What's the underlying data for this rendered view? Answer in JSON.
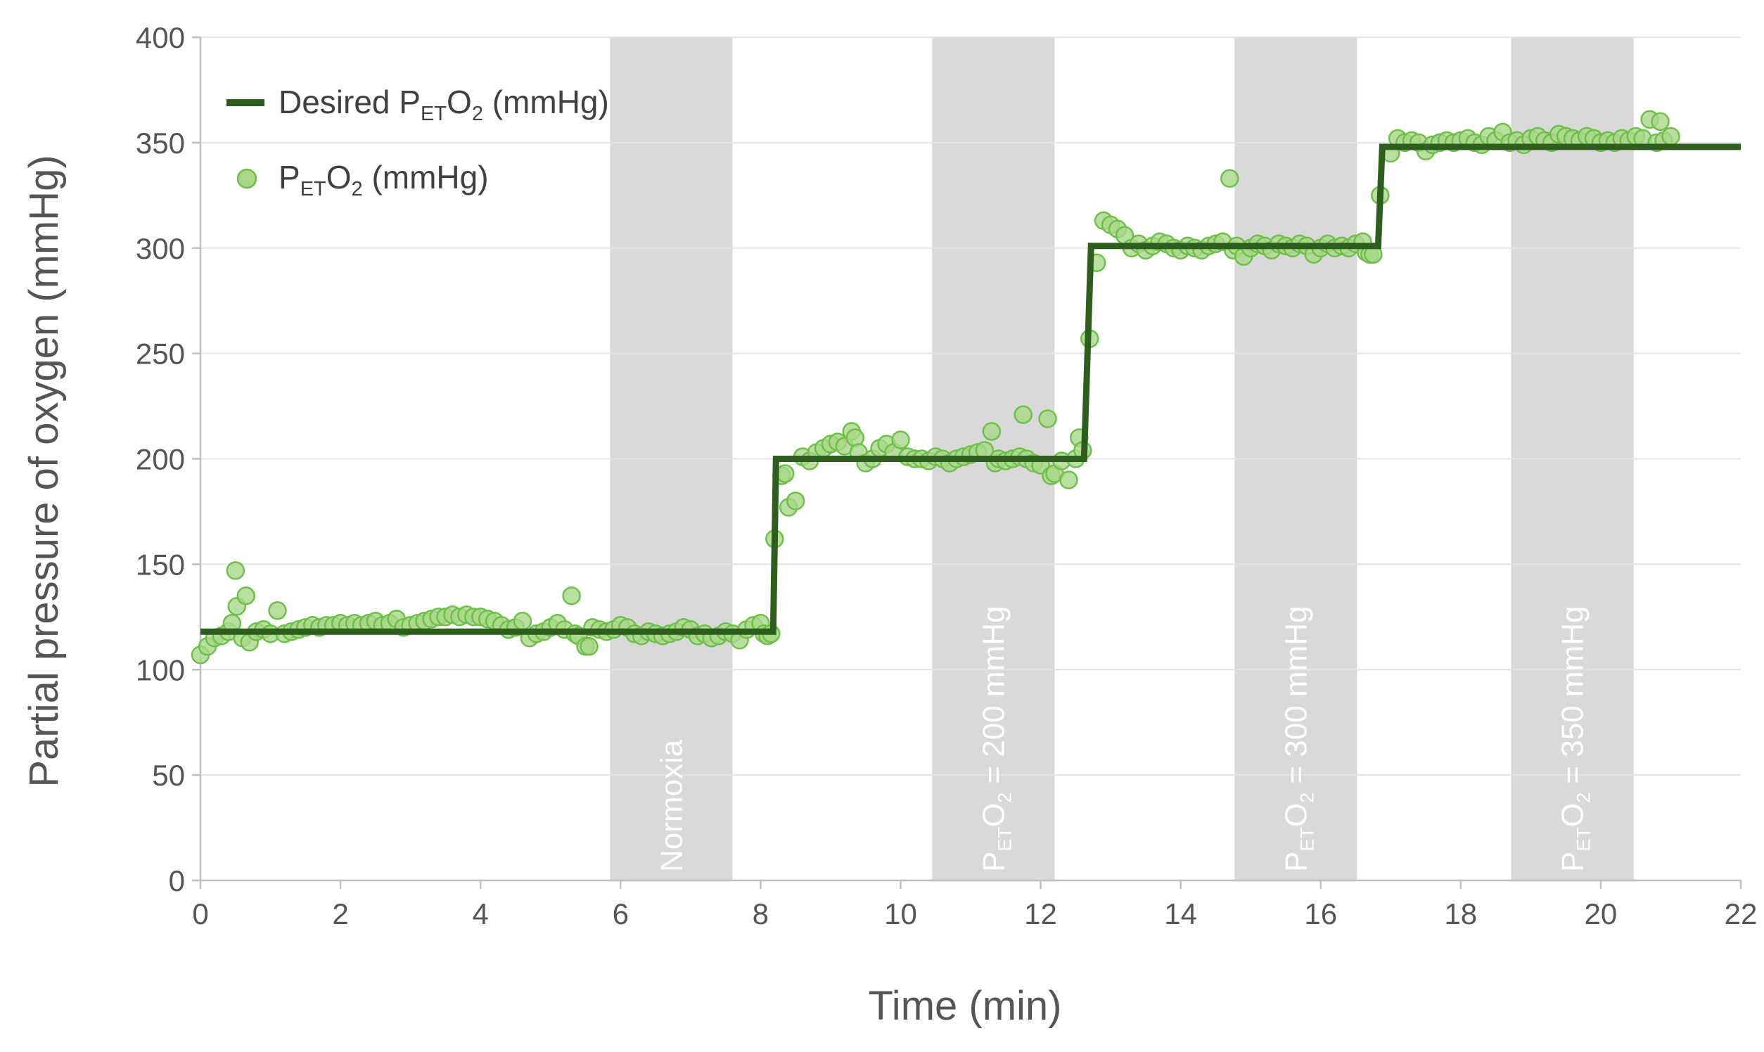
{
  "chart_data": {
    "type": "line",
    "title": "",
    "xlabel": "Time (min)",
    "ylabel": "Partial pressure of oxygen (mmHg)",
    "xlim": [
      0,
      22
    ],
    "ylim": [
      0,
      400
    ],
    "xticks": [
      0,
      2,
      4,
      6,
      8,
      10,
      12,
      14,
      16,
      18,
      20,
      22
    ],
    "yticks": [
      0,
      50,
      100,
      150,
      200,
      250,
      300,
      350,
      400
    ],
    "grid": "horizontal",
    "legend_position": "top-left",
    "colors": {
      "desired_line": "#2d5e1e",
      "marker_fill": "#a8d888",
      "marker_edge": "#6fbf4a",
      "band": "#d9d9d9",
      "band_text": "#ffffff",
      "text": "#555555"
    },
    "shaded_regions": [
      {
        "x_start": 5.85,
        "x_end": 7.6,
        "label": "Normoxia",
        "label_parts": []
      },
      {
        "x_start": 10.45,
        "x_end": 12.2,
        "label": "",
        "label_parts": [
          {
            "t": "P",
            "s": "n"
          },
          {
            "t": "ET",
            "s": "sub"
          },
          {
            "t": "O",
            "s": "n"
          },
          {
            "t": "2",
            "s": "sub"
          },
          {
            "t": " = 200 mmHg",
            "s": "n"
          }
        ]
      },
      {
        "x_start": 14.77,
        "x_end": 16.52,
        "label": "",
        "label_parts": [
          {
            "t": "P",
            "s": "n"
          },
          {
            "t": "ET",
            "s": "sub"
          },
          {
            "t": "O",
            "s": "n"
          },
          {
            "t": "2",
            "s": "sub"
          },
          {
            "t": " = 300 mmHg",
            "s": "n"
          }
        ]
      },
      {
        "x_start": 18.72,
        "x_end": 20.47,
        "label": "",
        "label_parts": [
          {
            "t": "P",
            "s": "n"
          },
          {
            "t": "ET",
            "s": "sub"
          },
          {
            "t": "O",
            "s": "n"
          },
          {
            "t": "2",
            "s": "sub"
          },
          {
            "t": " = 350 mmHg",
            "s": "n"
          }
        ]
      }
    ],
    "series": [
      {
        "name": "Desired PETO2 (mmHg)",
        "name_parts": [
          {
            "t": "Desired P",
            "s": "n"
          },
          {
            "t": "ET",
            "s": "sub"
          },
          {
            "t": "O",
            "s": "n"
          },
          {
            "t": "2",
            "s": "sub"
          },
          {
            "t": " (mmHg)",
            "s": "n"
          }
        ],
        "type": "step-line",
        "points": [
          [
            0,
            118
          ],
          [
            8.18,
            118
          ],
          [
            8.22,
            200
          ],
          [
            12.62,
            200
          ],
          [
            12.72,
            301
          ],
          [
            16.82,
            301
          ],
          [
            16.88,
            348
          ],
          [
            22,
            348
          ]
        ]
      },
      {
        "name": "PETO2 (mmHg)",
        "name_parts": [
          {
            "t": "P",
            "s": "n"
          },
          {
            "t": "ET",
            "s": "sub"
          },
          {
            "t": "O",
            "s": "n"
          },
          {
            "t": "2",
            "s": "sub"
          },
          {
            "t": " (mmHg)",
            "s": "n"
          }
        ],
        "type": "scatter",
        "points": [
          [
            0.0,
            107
          ],
          [
            0.1,
            111
          ],
          [
            0.2,
            115
          ],
          [
            0.3,
            116
          ],
          [
            0.4,
            118
          ],
          [
            0.45,
            122
          ],
          [
            0.5,
            147
          ],
          [
            0.52,
            130
          ],
          [
            0.6,
            115
          ],
          [
            0.65,
            135
          ],
          [
            0.7,
            113
          ],
          [
            0.8,
            118
          ],
          [
            0.9,
            119
          ],
          [
            1.0,
            117
          ],
          [
            1.1,
            128
          ],
          [
            1.2,
            117
          ],
          [
            1.3,
            118
          ],
          [
            1.4,
            119
          ],
          [
            1.5,
            120
          ],
          [
            1.6,
            121
          ],
          [
            1.7,
            120
          ],
          [
            1.8,
            121
          ],
          [
            1.9,
            121
          ],
          [
            2.0,
            122
          ],
          [
            2.1,
            121
          ],
          [
            2.2,
            122
          ],
          [
            2.3,
            121
          ],
          [
            2.4,
            122
          ],
          [
            2.5,
            123
          ],
          [
            2.6,
            121
          ],
          [
            2.7,
            122
          ],
          [
            2.8,
            124
          ],
          [
            2.9,
            120
          ],
          [
            3.0,
            121
          ],
          [
            3.1,
            122
          ],
          [
            3.2,
            123
          ],
          [
            3.3,
            124
          ],
          [
            3.4,
            125
          ],
          [
            3.5,
            125
          ],
          [
            3.6,
            126
          ],
          [
            3.7,
            125
          ],
          [
            3.8,
            126
          ],
          [
            3.9,
            125
          ],
          [
            4.0,
            125
          ],
          [
            4.1,
            124
          ],
          [
            4.2,
            123
          ],
          [
            4.3,
            121
          ],
          [
            4.4,
            119
          ],
          [
            4.5,
            120
          ],
          [
            4.6,
            123
          ],
          [
            4.7,
            115
          ],
          [
            4.8,
            117
          ],
          [
            4.9,
            118
          ],
          [
            5.0,
            120
          ],
          [
            5.1,
            122
          ],
          [
            5.2,
            119
          ],
          [
            5.3,
            135
          ],
          [
            5.35,
            117
          ],
          [
            5.4,
            116
          ],
          [
            5.5,
            111
          ],
          [
            5.55,
            111
          ],
          [
            5.6,
            120
          ],
          [
            5.7,
            119
          ],
          [
            5.8,
            118
          ],
          [
            5.9,
            119
          ],
          [
            6.0,
            121
          ],
          [
            6.1,
            120
          ],
          [
            6.2,
            117
          ],
          [
            6.3,
            116
          ],
          [
            6.4,
            118
          ],
          [
            6.5,
            117
          ],
          [
            6.6,
            116
          ],
          [
            6.7,
            117
          ],
          [
            6.8,
            118
          ],
          [
            6.9,
            120
          ],
          [
            7.0,
            119
          ],
          [
            7.1,
            116
          ],
          [
            7.2,
            117
          ],
          [
            7.3,
            115
          ],
          [
            7.4,
            116
          ],
          [
            7.5,
            118
          ],
          [
            7.6,
            117
          ],
          [
            7.7,
            114
          ],
          [
            7.8,
            119
          ],
          [
            7.9,
            121
          ],
          [
            8.0,
            122
          ],
          [
            8.05,
            117
          ],
          [
            8.1,
            116
          ],
          [
            8.15,
            117
          ],
          [
            8.2,
            162
          ],
          [
            8.3,
            192
          ],
          [
            8.35,
            193
          ],
          [
            8.4,
            177
          ],
          [
            8.5,
            180
          ],
          [
            8.6,
            201
          ],
          [
            8.7,
            199
          ],
          [
            8.8,
            203
          ],
          [
            8.9,
            205
          ],
          [
            9.0,
            207
          ],
          [
            9.1,
            208
          ],
          [
            9.2,
            206
          ],
          [
            9.3,
            213
          ],
          [
            9.35,
            210
          ],
          [
            9.4,
            203
          ],
          [
            9.5,
            198
          ],
          [
            9.6,
            200
          ],
          [
            9.7,
            205
          ],
          [
            9.8,
            207
          ],
          [
            9.9,
            203
          ],
          [
            10.0,
            209
          ],
          [
            10.1,
            201
          ],
          [
            10.2,
            200
          ],
          [
            10.3,
            200
          ],
          [
            10.4,
            199
          ],
          [
            10.5,
            201
          ],
          [
            10.6,
            200
          ],
          [
            10.7,
            198
          ],
          [
            10.8,
            200
          ],
          [
            10.9,
            201
          ],
          [
            11.0,
            202
          ],
          [
            11.1,
            203
          ],
          [
            11.2,
            204
          ],
          [
            11.3,
            213
          ],
          [
            11.35,
            198
          ],
          [
            11.4,
            200
          ],
          [
            11.5,
            199
          ],
          [
            11.6,
            200
          ],
          [
            11.7,
            201
          ],
          [
            11.75,
            221
          ],
          [
            11.8,
            200
          ],
          [
            11.9,
            198
          ],
          [
            12.0,
            197
          ],
          [
            12.1,
            219
          ],
          [
            12.15,
            192
          ],
          [
            12.2,
            193
          ],
          [
            12.3,
            199
          ],
          [
            12.4,
            190
          ],
          [
            12.5,
            200
          ],
          [
            12.55,
            210
          ],
          [
            12.6,
            204
          ],
          [
            12.7,
            257
          ],
          [
            12.8,
            293
          ],
          [
            12.9,
            313
          ],
          [
            13.0,
            311
          ],
          [
            13.1,
            309
          ],
          [
            13.2,
            306
          ],
          [
            13.3,
            300
          ],
          [
            13.4,
            302
          ],
          [
            13.5,
            299
          ],
          [
            13.6,
            301
          ],
          [
            13.7,
            303
          ],
          [
            13.8,
            302
          ],
          [
            13.9,
            300
          ],
          [
            14.0,
            299
          ],
          [
            14.1,
            301
          ],
          [
            14.2,
            300
          ],
          [
            14.3,
            299
          ],
          [
            14.4,
            301
          ],
          [
            14.5,
            302
          ],
          [
            14.6,
            303
          ],
          [
            14.7,
            333
          ],
          [
            14.75,
            299
          ],
          [
            14.8,
            301
          ],
          [
            14.9,
            296
          ],
          [
            15.0,
            300
          ],
          [
            15.1,
            302
          ],
          [
            15.2,
            301
          ],
          [
            15.3,
            299
          ],
          [
            15.4,
            302
          ],
          [
            15.5,
            301
          ],
          [
            15.6,
            300
          ],
          [
            15.7,
            302
          ],
          [
            15.8,
            301
          ],
          [
            15.9,
            297
          ],
          [
            16.0,
            300
          ],
          [
            16.1,
            302
          ],
          [
            16.2,
            300
          ],
          [
            16.3,
            301
          ],
          [
            16.4,
            300
          ],
          [
            16.5,
            302
          ],
          [
            16.6,
            303
          ],
          [
            16.65,
            298
          ],
          [
            16.7,
            297
          ],
          [
            16.75,
            297
          ],
          [
            16.85,
            325
          ],
          [
            17.0,
            345
          ],
          [
            17.1,
            352
          ],
          [
            17.2,
            350
          ],
          [
            17.3,
            351
          ],
          [
            17.4,
            350
          ],
          [
            17.5,
            346
          ],
          [
            17.6,
            349
          ],
          [
            17.7,
            350
          ],
          [
            17.8,
            351
          ],
          [
            17.9,
            350
          ],
          [
            18.0,
            351
          ],
          [
            18.1,
            352
          ],
          [
            18.2,
            350
          ],
          [
            18.3,
            349
          ],
          [
            18.4,
            353
          ],
          [
            18.5,
            351
          ],
          [
            18.6,
            355
          ],
          [
            18.7,
            350
          ],
          [
            18.8,
            351
          ],
          [
            18.9,
            349
          ],
          [
            19.0,
            352
          ],
          [
            19.1,
            353
          ],
          [
            19.2,
            351
          ],
          [
            19.3,
            350
          ],
          [
            19.4,
            354
          ],
          [
            19.5,
            353
          ],
          [
            19.6,
            352
          ],
          [
            19.7,
            351
          ],
          [
            19.8,
            353
          ],
          [
            19.9,
            352
          ],
          [
            20.0,
            350
          ],
          [
            20.1,
            351
          ],
          [
            20.2,
            350
          ],
          [
            20.3,
            352
          ],
          [
            20.4,
            351
          ],
          [
            20.5,
            353
          ],
          [
            20.6,
            352
          ],
          [
            20.7,
            361
          ],
          [
            20.8,
            350
          ],
          [
            20.85,
            360
          ],
          [
            20.9,
            351
          ],
          [
            21.0,
            353
          ]
        ]
      }
    ]
  }
}
